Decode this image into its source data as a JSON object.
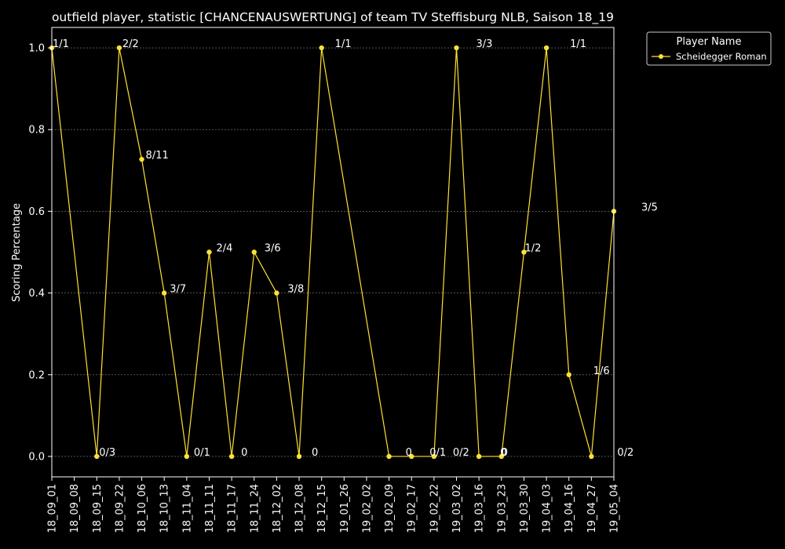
{
  "chart_data": {
    "type": "line",
    "title": "outfield player, statistic [CHANCENAUSWERTUNG] of team TV Steffisburg NLB, Saison 18_19",
    "xlabel": "",
    "ylabel": "Scoring Percentage",
    "ylim": [
      -0.05,
      1.05
    ],
    "y_ticks": [
      "0.0",
      "0.2",
      "0.4",
      "0.6",
      "0.8",
      "1.0"
    ],
    "grid": true,
    "legend": {
      "title": "Player Name",
      "placement": "outside-top-right"
    },
    "colors": {
      "background": "#000000",
      "line": "#ffe135",
      "grid": "#888888",
      "text": "#ffffff"
    },
    "categories": [
      "18_09_01",
      "18_09_08",
      "18_09_15",
      "18_09_22",
      "18_10_06",
      "18_10_13",
      "18_11_04",
      "18_11_11",
      "18_11_17",
      "18_11_24",
      "18_12_02",
      "18_12_08",
      "18_12_15",
      "19_01_26",
      "19_02_02",
      "19_02_09",
      "19_02_17",
      "19_02_22",
      "19_03_02",
      "19_03_16",
      "19_03_23",
      "19_03_30",
      "19_04_03",
      "19_04_16",
      "19_04_27",
      "19_05_04"
    ],
    "series": [
      {
        "name": "Scheidegger Roman",
        "values": [
          1.0,
          null,
          0.0,
          1.0,
          0.7272,
          0.4,
          0.0,
          0.5,
          0.0,
          0.5,
          0.4,
          0.0,
          1.0,
          null,
          null,
          0.0,
          0.0,
          0.0,
          1.0,
          0.0,
          0.0,
          0.5,
          1.0,
          0.2,
          0.0,
          0.6
        ],
        "labels": [
          "1/1",
          null,
          "0/3",
          "2/2",
          "8/11",
          "3/7",
          "0/1",
          "2/4",
          "0",
          "3/6",
          "3/8",
          "0",
          "1/1",
          null,
          null,
          "0",
          "0/1",
          "0/2",
          "3/3",
          "0",
          "0",
          "1/2",
          "1/1",
          "1/6",
          "0/2",
          "3/5"
        ]
      }
    ]
  }
}
